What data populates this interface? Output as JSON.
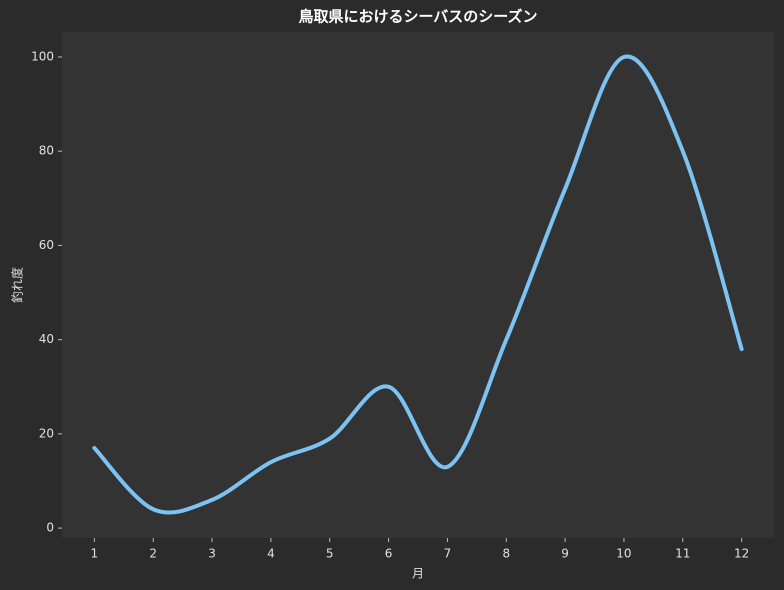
{
  "chart_data": {
    "type": "line",
    "title": "鳥取県におけるシーバスのシーズン",
    "xlabel": "月",
    "ylabel": "釣れ度",
    "x": [
      1,
      2,
      3,
      4,
      5,
      6,
      7,
      8,
      9,
      10,
      11,
      12
    ],
    "series": [
      {
        "name": "釣れ度",
        "color": "#7cc3f3",
        "values": [
          17,
          4,
          6,
          14,
          19,
          30,
          13,
          40,
          72,
          100,
          80,
          38
        ]
      }
    ],
    "xlim": [
      0.45,
      12.55
    ],
    "ylim": [
      -2.1,
      105.3
    ],
    "xticks": [
      1,
      2,
      3,
      4,
      5,
      6,
      7,
      8,
      9,
      10,
      11,
      12
    ],
    "yticks": [
      0,
      20,
      40,
      60,
      80,
      100
    ],
    "grid": false
  }
}
